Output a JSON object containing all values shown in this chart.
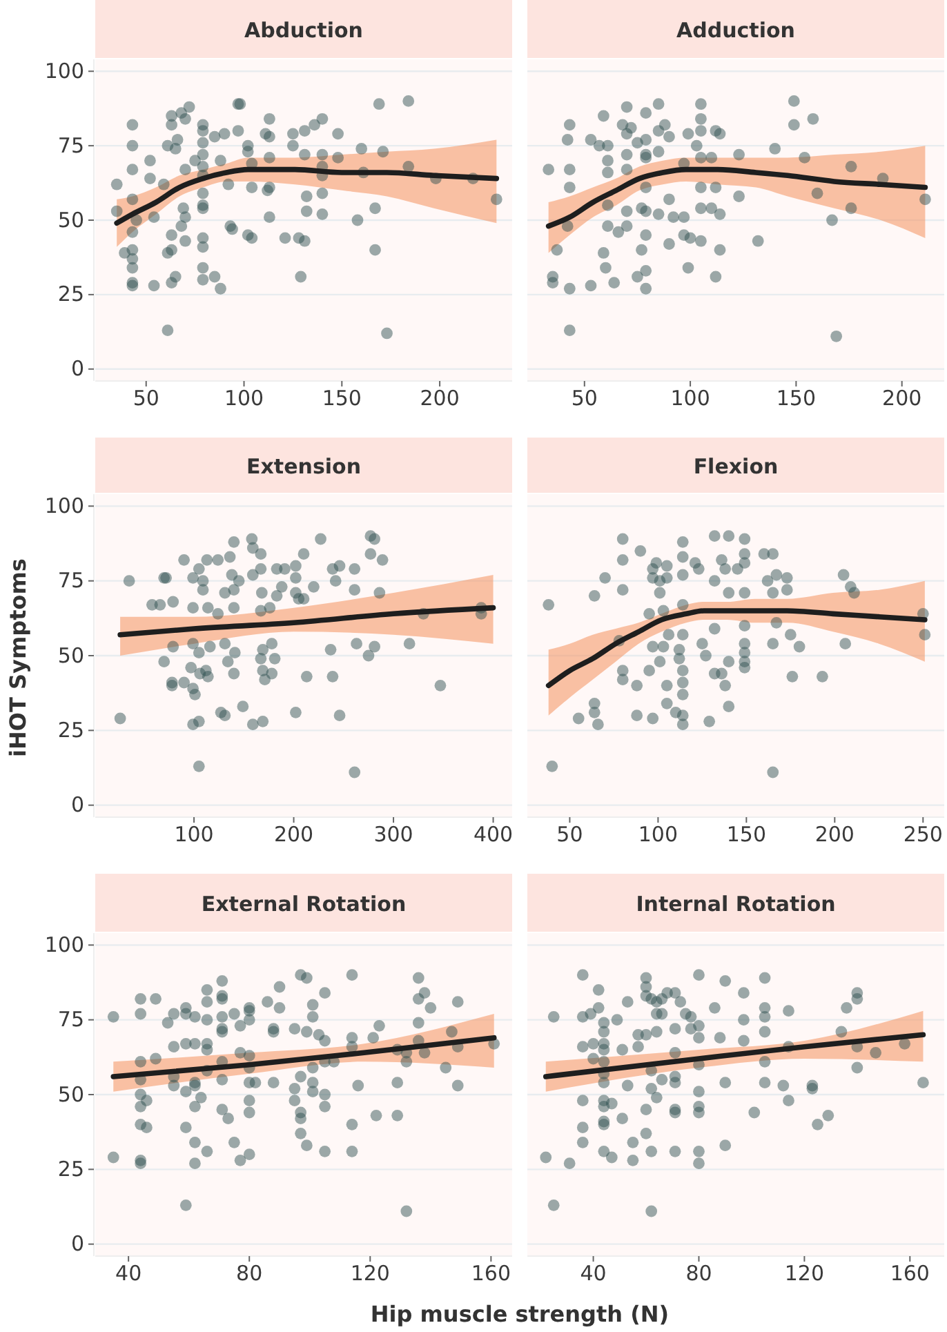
{
  "chart_data": [
    {
      "type": "scatter",
      "title": "Abduction",
      "xlim": [
        24,
        237
      ],
      "xticks": [
        50,
        100,
        150,
        200
      ],
      "ylim": [
        -4,
        104
      ],
      "yticks": [
        0,
        25,
        50,
        75,
        100
      ],
      "grid": "y",
      "series": [
        {
          "marker": "circle",
          "color": "#2f4f4f",
          "x": [
            35,
            35,
            43,
            43,
            43,
            43,
            45,
            43,
            39,
            43,
            43,
            43,
            43,
            43,
            54,
            52,
            52,
            59,
            54,
            61,
            63,
            63,
            65,
            63,
            61,
            61,
            63,
            63,
            66,
            65,
            68,
            70,
            72,
            70,
            69,
            70,
            68,
            70,
            75,
            79,
            79,
            79,
            79,
            79,
            79,
            79,
            79,
            79,
            79,
            79,
            79,
            79,
            85,
            88,
            85,
            90,
            88,
            92,
            94,
            93,
            97,
            98,
            97,
            102,
            102,
            104,
            104,
            102,
            104,
            113,
            111,
            113,
            113,
            113,
            112,
            113,
            121,
            125,
            125,
            128,
            131,
            132,
            132,
            129,
            131,
            131,
            136,
            140,
            140,
            140,
            140,
            140,
            140,
            148,
            148,
            158,
            160,
            161,
            167,
            167,
            169,
            171,
            173,
            184,
            184,
            198,
            217,
            229
          ],
          "values": [
            62,
            53,
            82,
            75,
            67,
            57,
            50,
            46,
            39,
            40,
            37,
            34,
            29,
            28,
            28,
            64,
            70,
            62,
            51,
            39,
            40,
            45,
            31,
            29,
            13,
            75,
            85,
            82,
            77,
            74,
            86,
            84,
            88,
            67,
            54,
            51,
            48,
            43,
            70,
            82,
            80,
            76,
            72,
            68,
            65,
            59,
            55,
            54,
            44,
            41,
            34,
            30,
            31,
            27,
            78,
            79,
            70,
            62,
            47,
            48,
            89,
            89,
            80,
            75,
            73,
            61,
            69,
            45,
            44,
            84,
            79,
            78,
            71,
            61,
            60,
            51,
            44,
            79,
            75,
            44,
            43,
            58,
            53,
            31,
            72,
            80,
            82,
            84,
            72,
            68,
            65,
            59,
            52,
            79,
            71,
            50,
            74,
            66,
            54,
            40,
            89,
            73,
            12,
            90,
            68,
            64,
            64,
            57
          ]
        },
        {
          "type": "line",
          "color": "#1e1e1e",
          "x": [
            35,
            43,
            55,
            67,
            79,
            91,
            102,
            126,
            150,
            173,
            197,
            229
          ],
          "values": [
            49,
            52,
            56,
            61,
            64,
            66,
            67,
            67,
            66,
            66,
            65,
            64
          ],
          "lower": [
            41,
            46,
            52,
            58,
            61,
            63,
            63,
            62,
            60,
            58,
            54,
            49
          ],
          "upper": [
            57,
            58,
            61,
            65,
            67,
            69,
            71,
            71,
            72,
            73,
            74,
            77
          ]
        }
      ]
    },
    {
      "type": "scatter",
      "title": "Adduction",
      "xlim": [
        23,
        220
      ],
      "xticks": [
        50,
        100,
        150,
        200
      ],
      "ylim": [
        -4,
        104
      ],
      "yticks": [
        0,
        25,
        50,
        75,
        100
      ],
      "grid": "y",
      "tick_labels": "x",
      "series": [
        {
          "marker": "circle",
          "color": "#2f4f4f",
          "x": [
            33,
            43,
            42,
            43,
            43,
            42,
            37,
            35,
            35,
            43,
            43,
            53,
            53,
            57,
            59,
            61,
            61,
            61,
            61,
            61,
            59,
            60,
            64,
            66,
            68,
            70,
            70,
            70,
            70,
            70,
            70,
            72,
            75,
            77,
            75,
            79,
            79,
            79,
            79,
            79,
            79,
            79,
            77,
            79,
            79,
            85,
            85,
            88,
            90,
            85,
            90,
            85,
            90,
            92,
            97,
            97,
            99,
            97,
            99,
            105,
            105,
            105,
            103,
            105,
            105,
            105,
            100,
            105,
            112,
            114,
            110,
            112,
            110,
            114,
            114,
            112,
            123,
            123,
            132,
            140,
            149,
            149,
            158,
            154,
            160,
            167,
            169,
            176,
            176,
            191,
            211
          ],
          "values": [
            67,
            82,
            77,
            67,
            61,
            48,
            40,
            31,
            29,
            27,
            13,
            77,
            28,
            75,
            85,
            75,
            70,
            66,
            55,
            48,
            39,
            34,
            29,
            46,
            82,
            88,
            79,
            72,
            67,
            53,
            48,
            81,
            76,
            54,
            31,
            86,
            77,
            72,
            71,
            61,
            53,
            45,
            40,
            33,
            27,
            89,
            80,
            82,
            78,
            73,
            57,
            52,
            42,
            51,
            51,
            45,
            34,
            69,
            79,
            89,
            84,
            80,
            75,
            71,
            61,
            54,
            44,
            43,
            80,
            79,
            71,
            61,
            54,
            52,
            40,
            31,
            72,
            58,
            43,
            74,
            90,
            82,
            84,
            71,
            59,
            50,
            11,
            68,
            54,
            64,
            57
          ]
        },
        {
          "type": "line",
          "color": "#1e1e1e",
          "x": [
            33,
            43,
            54,
            65,
            76,
            87,
            98,
            113,
            131,
            146,
            168,
            190,
            211
          ],
          "values": [
            48,
            51,
            56,
            60,
            64,
            66,
            67,
            67,
            66,
            65,
            63,
            62,
            61
          ],
          "lower": [
            39,
            45,
            51,
            55,
            60,
            62,
            63,
            62,
            61,
            58,
            54,
            50,
            44
          ],
          "upper": [
            56,
            58,
            61,
            64,
            68,
            70,
            71,
            71,
            71,
            71,
            72,
            73,
            75
          ]
        }
      ]
    },
    {
      "type": "scatter",
      "title": "Extension",
      "ylabel": "iHOT Symptoms",
      "xlim": [
        1,
        419
      ],
      "xticks": [
        100,
        200,
        300,
        400
      ],
      "ylim": [
        -4,
        104
      ],
      "yticks": [
        0,
        25,
        50,
        75,
        100
      ],
      "grid": "y",
      "series": [
        {
          "marker": "circle",
          "color": "#2f4f4f",
          "x": [
            26,
            35,
            58,
            66,
            70,
            72,
            70,
            78,
            78,
            79,
            79,
            90,
            90,
            97,
            99,
            99,
            99,
            99,
            101,
            99,
            105,
            105,
            105,
            109,
            109,
            105,
            106,
            112,
            114,
            113,
            114,
            116,
            124,
            124,
            127,
            131,
            131,
            131,
            134,
            136,
            138,
            140,
            140,
            141,
            140,
            140,
            145,
            149,
            158,
            159,
            159,
            159,
            167,
            167,
            167,
            167,
            168,
            169,
            169,
            171,
            169,
            176,
            178,
            178,
            181,
            183,
            183,
            188,
            191,
            202,
            202,
            202,
            202,
            205,
            210,
            210,
            213,
            220,
            227,
            237,
            239,
            239,
            242,
            246,
            246,
            261,
            261,
            263,
            261,
            277,
            281,
            277,
            289,
            286,
            281,
            275,
            316,
            347,
            330,
            388,
            388
          ],
          "values": [
            29,
            75,
            67,
            67,
            76,
            76,
            48,
            40,
            41,
            53,
            68,
            41,
            82,
            46,
            76,
            66,
            54,
            39,
            37,
            27,
            28,
            13,
            79,
            75,
            72,
            51,
            44,
            45,
            43,
            82,
            66,
            53,
            82,
            64,
            31,
            71,
            54,
            30,
            48,
            83,
            77,
            88,
            66,
            51,
            44,
            72,
            75,
            33,
            89,
            86,
            77,
            27,
            84,
            79,
            65,
            49,
            71,
            52,
            45,
            42,
            28,
            66,
            54,
            44,
            49,
            79,
            70,
            73,
            79,
            80,
            76,
            71,
            31,
            69,
            69,
            84,
            43,
            73,
            89,
            52,
            79,
            43,
            75,
            80,
            30,
            79,
            72,
            54,
            11,
            90,
            89,
            84,
            82,
            71,
            53,
            50,
            54,
            40,
            64,
            64,
            66
          ]
        },
        {
          "type": "line",
          "color": "#1e1e1e",
          "x": [
            26,
            100,
            200,
            300,
            400
          ],
          "values": [
            57,
            59,
            61,
            64,
            66
          ],
          "lower": [
            50,
            54,
            58,
            57,
            54
          ],
          "upper": [
            63,
            63,
            66,
            71,
            77
          ]
        }
      ]
    },
    {
      "type": "scatter",
      "title": "Flexion",
      "xlim": [
        26,
        262
      ],
      "xticks": [
        50,
        100,
        150,
        200,
        250
      ],
      "ylim": [
        -4,
        104
      ],
      "yticks": [
        0,
        25,
        50,
        75,
        100
      ],
      "grid": "y",
      "tick_labels": "x",
      "series": [
        {
          "marker": "circle",
          "color": "#2f4f4f",
          "x": [
            38,
            40,
            55,
            64,
            64,
            66,
            64,
            70,
            80,
            80,
            80,
            80,
            80,
            78,
            88,
            90,
            88,
            95,
            95,
            97,
            97,
            97,
            99,
            101,
            101,
            97,
            101,
            103,
            105,
            105,
            105,
            105,
            103,
            106,
            110,
            112,
            112,
            114,
            114,
            114,
            114,
            114,
            114,
            114,
            114,
            114,
            114,
            121,
            123,
            125,
            127,
            129,
            132,
            132,
            132,
            132,
            136,
            136,
            140,
            138,
            140,
            140,
            140,
            138,
            145,
            149,
            149,
            149,
            149,
            149,
            149,
            149,
            149,
            149,
            160,
            165,
            162,
            167,
            165,
            165,
            165,
            167,
            173,
            173,
            175,
            176,
            180,
            193,
            205,
            209,
            206,
            211,
            250,
            251
          ],
          "values": [
            67,
            13,
            29,
            34,
            31,
            27,
            70,
            76,
            89,
            82,
            72,
            45,
            42,
            55,
            40,
            85,
            30,
            64,
            45,
            79,
            76,
            29,
            81,
            75,
            71,
            53,
            48,
            65,
            80,
            76,
            40,
            34,
            53,
            57,
            31,
            52,
            49,
            88,
            83,
            77,
            67,
            57,
            45,
            41,
            37,
            30,
            27,
            81,
            79,
            54,
            50,
            28,
            90,
            75,
            59,
            44,
            44,
            82,
            90,
            79,
            71,
            48,
            33,
            40,
            79,
            89,
            84,
            81,
            71,
            60,
            54,
            51,
            48,
            46,
            84,
            84,
            75,
            77,
            71,
            54,
            11,
            61,
            76,
            72,
            57,
            43,
            53,
            43,
            77,
            73,
            54,
            71,
            64,
            57
          ]
        },
        {
          "type": "line",
          "color": "#1e1e1e",
          "x": [
            38,
            50,
            63,
            76,
            89,
            102,
            116,
            126,
            139,
            155,
            173,
            199,
            225,
            251
          ],
          "values": [
            40,
            45,
            49,
            54,
            58,
            62,
            64,
            65,
            65,
            65,
            65,
            64,
            63,
            62
          ],
          "lower": [
            30,
            36,
            42,
            48,
            54,
            58,
            61,
            62,
            62,
            61,
            61,
            58,
            54,
            48
          ],
          "upper": [
            52,
            54,
            57,
            59,
            61,
            64,
            67,
            68,
            68,
            69,
            69,
            71,
            72,
            75
          ]
        }
      ]
    },
    {
      "type": "scatter",
      "title": "External Rotation",
      "xlabel": "Hip muscle strength (N)",
      "xlim": [
        29,
        167
      ],
      "xticks": [
        40,
        80,
        120,
        160
      ],
      "ylim": [
        -4,
        104
      ],
      "yticks": [
        0,
        25,
        50,
        75,
        100
      ],
      "grid": "y",
      "series": [
        {
          "marker": "circle",
          "color": "#2f4f4f",
          "x": [
            35,
            35,
            44,
            44,
            44,
            44,
            44,
            44,
            44,
            44,
            44,
            46,
            46,
            49,
            49,
            53,
            55,
            55,
            55,
            55,
            59,
            59,
            59,
            59,
            59,
            59,
            62,
            62,
            62,
            62,
            62,
            62,
            62,
            64,
            66,
            66,
            66,
            66,
            66,
            66,
            66,
            71,
            71,
            71,
            71,
            71,
            71,
            71,
            71,
            71,
            73,
            75,
            75,
            77,
            77,
            77,
            80,
            80,
            80,
            80,
            80,
            80,
            80,
            80,
            80,
            82,
            86,
            88,
            88,
            88,
            90,
            90,
            95,
            95,
            95,
            97,
            99,
            97,
            97,
            97,
            97,
            99,
            99,
            101,
            101,
            101,
            101,
            101,
            103,
            105,
            105,
            105,
            105,
            105,
            105,
            108,
            114,
            114,
            114,
            114,
            114,
            116,
            121,
            122,
            123,
            129,
            129,
            129,
            132,
            132,
            132,
            136,
            136,
            136,
            136,
            138,
            138,
            140,
            145,
            147,
            149,
            149,
            149,
            161
          ],
          "values": [
            76,
            29,
            82,
            77,
            61,
            55,
            50,
            46,
            40,
            28,
            27,
            48,
            39,
            82,
            62,
            74,
            77,
            66,
            56,
            53,
            79,
            77,
            67,
            51,
            39,
            13,
            76,
            67,
            54,
            53,
            46,
            34,
            27,
            49,
            85,
            81,
            75,
            67,
            65,
            58,
            31,
            88,
            83,
            82,
            76,
            72,
            71,
            61,
            55,
            45,
            42,
            77,
            34,
            73,
            64,
            28,
            79,
            78,
            75,
            63,
            59,
            54,
            48,
            44,
            30,
            54,
            81,
            72,
            71,
            54,
            86,
            79,
            72,
            52,
            48,
            90,
            89,
            56,
            44,
            42,
            37,
            33,
            71,
            80,
            76,
            59,
            54,
            51,
            70,
            84,
            68,
            61,
            50,
            46,
            31,
            61,
            90,
            69,
            66,
            40,
            31,
            53,
            69,
            43,
            73,
            65,
            54,
            43,
            64,
            61,
            11,
            89,
            82,
            74,
            68,
            84,
            64,
            79,
            59,
            71,
            81,
            66,
            53,
            67
          ]
        },
        {
          "type": "line",
          "color": "#1e1e1e",
          "x": [
            35,
            80,
            118,
            161
          ],
          "values": [
            56,
            60,
            64,
            69
          ],
          "lower": [
            51,
            57,
            61,
            59
          ],
          "upper": [
            61,
            64,
            67,
            77
          ]
        }
      ]
    },
    {
      "type": "scatter",
      "title": "Internal Rotation",
      "xlim": [
        15,
        173
      ],
      "xticks": [
        40,
        80,
        120,
        160
      ],
      "ylim": [
        -4,
        104
      ],
      "yticks": [
        0,
        25,
        50,
        75,
        100
      ],
      "grid": "y",
      "tick_labels": "x",
      "series": [
        {
          "marker": "circle",
          "color": "#2f4f4f",
          "x": [
            22,
            25,
            25,
            31,
            36,
            36,
            36,
            36,
            36,
            36,
            39,
            40,
            40,
            42,
            42,
            44,
            44,
            44,
            44,
            44,
            44,
            44,
            44,
            44,
            44,
            44,
            44,
            47,
            47,
            49,
            51,
            51,
            53,
            53,
            55,
            55,
            57,
            57,
            60,
            60,
            60,
            60,
            60,
            60,
            62,
            62,
            62,
            62,
            62,
            64,
            64,
            64,
            64,
            66,
            66,
            66,
            68,
            71,
            71,
            71,
            71,
            71,
            71,
            71,
            71,
            73,
            75,
            77,
            77,
            80,
            80,
            80,
            80,
            80,
            80,
            80,
            80,
            80,
            86,
            88,
            90,
            90,
            90,
            97,
            97,
            97,
            101,
            105,
            105,
            105,
            105,
            105,
            105,
            114,
            112,
            114,
            114,
            123,
            123,
            125,
            129,
            134,
            136,
            140,
            140,
            140,
            140,
            147,
            158,
            165
          ],
          "values": [
            29,
            13,
            76,
            27,
            90,
            76,
            66,
            48,
            39,
            34,
            77,
            67,
            62,
            85,
            79,
            74,
            71,
            67,
            65,
            61,
            57,
            54,
            48,
            46,
            41,
            40,
            31,
            47,
            29,
            75,
            65,
            42,
            81,
            53,
            34,
            28,
            66,
            70,
            89,
            86,
            83,
            70,
            45,
            37,
            82,
            58,
            52,
            31,
            11,
            81,
            77,
            71,
            49,
            82,
            77,
            55,
            84,
            84,
            72,
            64,
            56,
            54,
            45,
            44,
            31,
            81,
            77,
            76,
            72,
            90,
            73,
            69,
            60,
            51,
            46,
            44,
            31,
            27,
            79,
            69,
            88,
            54,
            33,
            84,
            75,
            68,
            44,
            89,
            79,
            76,
            71,
            61,
            54,
            78,
            53,
            48,
            66,
            53,
            52,
            40,
            43,
            71,
            79,
            84,
            82,
            66,
            59,
            64,
            67,
            54
          ]
        },
        {
          "type": "line",
          "color": "#1e1e1e",
          "x": [
            22,
            80,
            120,
            165
          ],
          "values": [
            56,
            62,
            66,
            70
          ],
          "lower": [
            51,
            59,
            62,
            61
          ],
          "upper": [
            61,
            65,
            68,
            78
          ]
        }
      ]
    }
  ]
}
